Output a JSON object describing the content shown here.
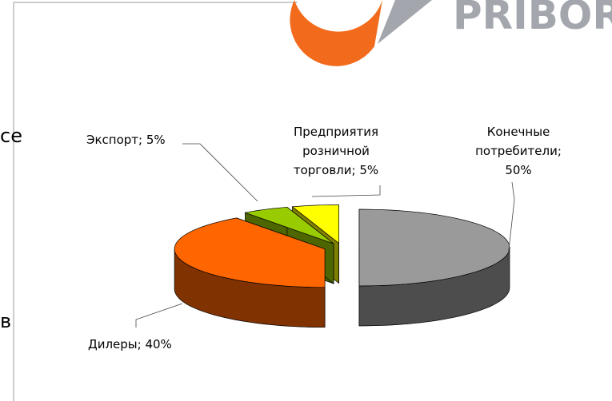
{
  "chart_data": {
    "type": "pie3d",
    "value_labels": [
      [
        "Конечные",
        "потребители;",
        "50%"
      ],
      [
        "Дилеры; 40%"
      ],
      [
        "Экспорт; 5%"
      ],
      [
        "Предприятия",
        "розничной",
        "торговли; 5%"
      ]
    ],
    "values": [
      50,
      40,
      5,
      5
    ],
    "colors": [
      "#9a9a9a",
      "#ff6600",
      "#99cc00",
      "#ffff00"
    ]
  },
  "fragments": [
    "се",
    "в"
  ],
  "logo_text": "PRIBOR"
}
